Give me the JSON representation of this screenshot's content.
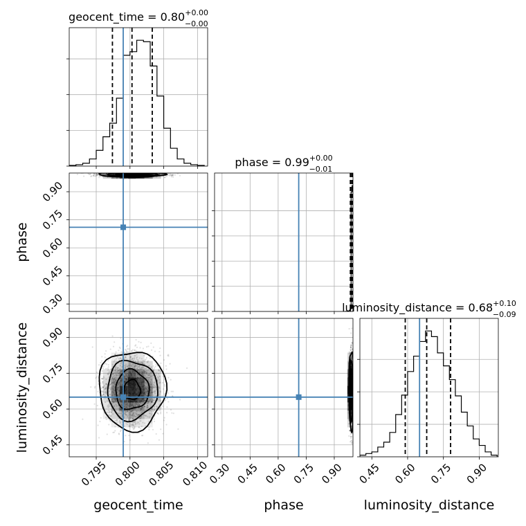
{
  "chart_data": {
    "type": "corner",
    "parameters": [
      "geocent_time",
      "phase",
      "luminosity_distance"
    ],
    "truth": {
      "geocent_time": 0.799,
      "phase": 0.71,
      "luminosity_distance": 0.65
    },
    "grid": true,
    "marginals": [
      {
        "name": "geocent_time",
        "title": "geocent_time = 0.80",
        "title_sup": "+0.00",
        "title_sub": "−0.00",
        "xlim": [
          0.791,
          0.8115
        ],
        "ticks": [
          0.795,
          0.8,
          0.805,
          0.81
        ],
        "tick_labels": [
          "0.795",
          "0.800",
          "0.805",
          "0.810"
        ],
        "bin_edges": [
          0.791,
          0.792,
          0.793,
          0.794,
          0.795,
          0.796,
          0.797,
          0.798,
          0.799,
          0.8,
          0.801,
          0.802,
          0.803,
          0.804,
          0.805,
          0.806,
          0.807,
          0.808,
          0.809,
          0.81,
          0.811
        ],
        "counts": [
          1,
          2,
          4,
          10,
          22,
          41,
          60,
          95,
          155,
          160,
          176,
          174,
          140,
          98,
          53,
          25,
          10,
          4,
          2,
          1
        ],
        "quantiles": [
          0.7974,
          0.8003,
          0.8033
        ]
      },
      {
        "name": "phase",
        "title": "phase = 0.99",
        "title_sup": "+0.00",
        "title_sub": "−0.01",
        "xlim": [
          0.26,
          1.0
        ],
        "ticks": [
          0.3,
          0.45,
          0.6,
          0.75,
          0.9
        ],
        "tick_labels": [
          "0.30",
          "0.45",
          "0.60",
          "0.75",
          "0.90"
        ],
        "bin_edges": [
          0.955,
          0.96,
          0.965,
          0.97,
          0.975,
          0.98,
          0.985,
          0.99,
          0.995,
          1.0
        ],
        "counts": [
          0,
          0,
          0,
          0,
          0,
          1,
          2,
          95,
          100
        ],
        "quantiles": [
          0.986,
          0.993,
          0.998
        ]
      },
      {
        "name": "luminosity_distance",
        "title": "luminosity_distance = 0.68",
        "title_sup": "+0.10",
        "title_sub": "−0.09",
        "xlim": [
          0.4,
          0.98
        ],
        "ticks": [
          0.45,
          0.6,
          0.75,
          0.9
        ],
        "tick_labels": [
          "0.45",
          "0.60",
          "0.75",
          "0.90"
        ],
        "bin_edges": [
          0.4,
          0.425,
          0.45,
          0.475,
          0.5,
          0.525,
          0.55,
          0.575,
          0.6,
          0.625,
          0.65,
          0.675,
          0.7,
          0.725,
          0.75,
          0.775,
          0.8,
          0.825,
          0.85,
          0.875,
          0.9,
          0.925,
          0.95,
          0.975
        ],
        "counts": [
          2,
          4,
          6,
          12,
          18,
          30,
          52,
          76,
          105,
          124,
          142,
          155,
          148,
          128,
          112,
          95,
          75,
          55,
          38,
          22,
          14,
          6,
          2
        ],
        "quantiles": [
          0.59,
          0.68,
          0.78
        ]
      }
    ],
    "axis_labels": {
      "x": [
        "geocent_time",
        "phase",
        "luminosity_distance"
      ],
      "y": [
        "phase",
        "luminosity_distance"
      ]
    },
    "y_ticks": {
      "phase": {
        "ylim": [
          0.26,
          1.0
        ],
        "ticks": [
          0.3,
          0.45,
          0.6,
          0.75,
          0.9
        ],
        "tick_labels": [
          "0.30",
          "0.45",
          "0.60",
          "0.75",
          "0.90"
        ]
      },
      "luminosity_distance": {
        "ylim": [
          0.4,
          0.98
        ],
        "ticks": [
          0.45,
          0.6,
          0.75,
          0.9
        ],
        "tick_labels": [
          "0.45",
          "0.60",
          "0.75",
          "0.90"
        ]
      }
    },
    "joint_posterior": {
      "geocent_time": {
        "mean": 0.8003,
        "sd": 0.00215
      },
      "phase": {
        "mean": 0.992,
        "sd": 0.006
      },
      "luminosity_distance": {
        "mean": 0.68,
        "sd": 0.072
      },
      "contour_levels_sigma": [
        0.5,
        1.0,
        1.5,
        2.0
      ]
    }
  }
}
